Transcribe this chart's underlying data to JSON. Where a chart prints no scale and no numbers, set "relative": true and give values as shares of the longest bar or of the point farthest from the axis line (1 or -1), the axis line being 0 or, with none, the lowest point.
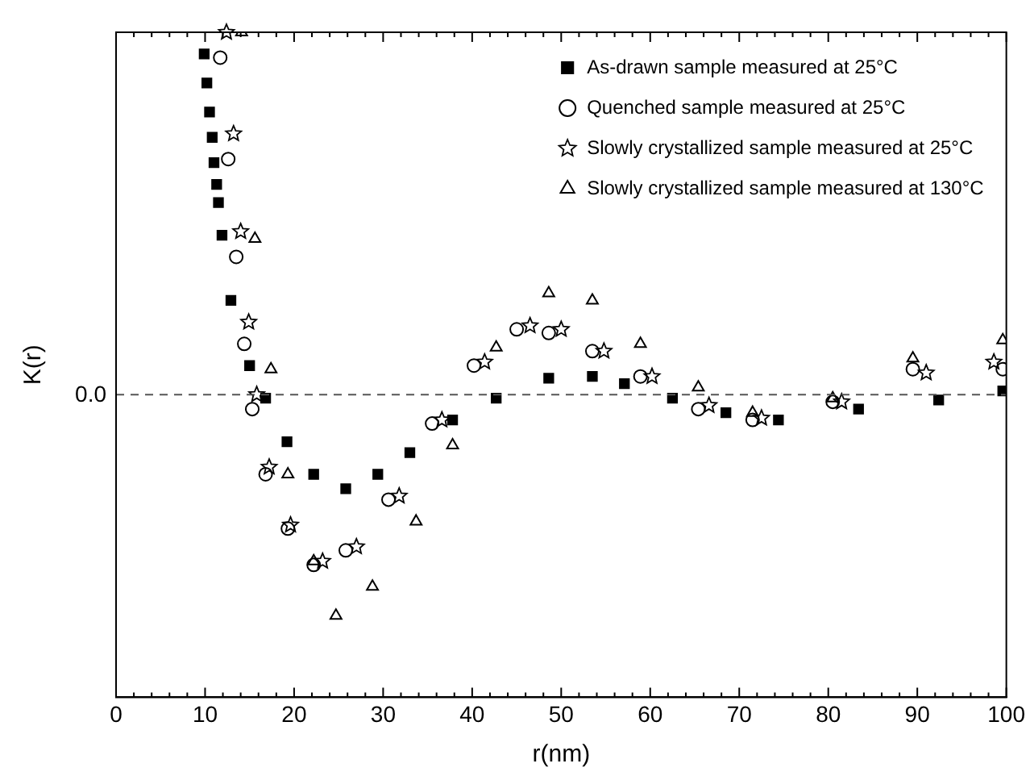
{
  "chart_data": {
    "type": "scatter",
    "xlabel": "r(nm)",
    "ylabel": "K(r)",
    "relative": true,
    "legend": "top right",
    "grid": false,
    "xlim": [
      0,
      100
    ],
    "xticks": [
      0,
      {
        "value": 2,
        "label": null
      },
      {
        "value": 4,
        "label": null
      },
      {
        "value": 6,
        "label": null
      },
      {
        "value": 8,
        "label": null
      },
      10,
      {
        "value": 12,
        "label": null
      },
      {
        "value": 14,
        "label": null
      },
      {
        "value": 16,
        "label": null
      },
      {
        "value": 18,
        "label": null
      },
      20,
      {
        "value": 22,
        "label": null
      },
      {
        "value": 24,
        "label": null
      },
      {
        "value": 26,
        "label": null
      },
      {
        "value": 28,
        "label": null
      },
      30,
      {
        "value": 32,
        "label": null
      },
      {
        "value": 34,
        "label": null
      },
      {
        "value": 36,
        "label": null
      },
      {
        "value": 38,
        "label": null
      },
      40,
      {
        "value": 42,
        "label": null
      },
      {
        "value": 44,
        "label": null
      },
      {
        "value": 46,
        "label": null
      },
      {
        "value": 48,
        "label": null
      },
      50,
      {
        "value": 52,
        "label": null
      },
      {
        "value": 54,
        "label": null
      },
      {
        "value": 56,
        "label": null
      },
      {
        "value": 58,
        "label": null
      },
      60,
      {
        "value": 62,
        "label": null
      },
      {
        "value": 64,
        "label": null
      },
      {
        "value": 66,
        "label": null
      },
      {
        "value": 68,
        "label": null
      },
      70,
      {
        "value": 72,
        "label": null
      },
      {
        "value": 74,
        "label": null
      },
      {
        "value": 76,
        "label": null
      },
      {
        "value": 78,
        "label": null
      },
      80,
      {
        "value": 82,
        "label": null
      },
      {
        "value": 84,
        "label": null
      },
      {
        "value": 86,
        "label": null
      },
      {
        "value": 88,
        "label": null
      },
      90,
      {
        "value": 92,
        "label": null
      },
      {
        "value": 94,
        "label": null
      },
      {
        "value": 96,
        "label": null
      },
      {
        "value": 98,
        "label": null
      },
      100
    ],
    "ref_lines": [
      {
        "axis": "y",
        "value": 0,
        "label": "0.0",
        "color": "#555555",
        "line_style": "dashed"
      }
    ],
    "series": [
      {
        "name": "As-drawn sample measured at 25°C",
        "color": "#000000",
        "marker": "square",
        "x": [
          9.9,
          10.2,
          10.5,
          10.8,
          11.0,
          11.3,
          11.5,
          11.9,
          12.9,
          15.0,
          16.8,
          19.2,
          22.2,
          25.8,
          29.4,
          33.0,
          37.8,
          42.7,
          48.6,
          53.5,
          57.1,
          62.5,
          68.5,
          74.4,
          83.4,
          92.4,
          99.6
        ],
        "values": [
          0.94,
          0.86,
          0.78,
          0.71,
          0.64,
          0.58,
          0.53,
          0.44,
          0.26,
          0.08,
          -0.01,
          -0.13,
          -0.22,
          -0.26,
          -0.22,
          -0.16,
          -0.07,
          -0.01,
          0.045,
          0.05,
          0.03,
          -0.01,
          -0.05,
          -0.07,
          -0.04,
          -0.015,
          0.01
        ]
      },
      {
        "name": "Quenched sample measured at 25°C",
        "color": "#000000",
        "marker": "circle",
        "x": [
          11.7,
          12.6,
          13.5,
          14.4,
          15.3,
          16.8,
          19.3,
          22.2,
          25.8,
          30.6,
          35.5,
          40.2,
          45.0,
          48.6,
          53.5,
          58.9,
          65.4,
          71.5,
          80.5,
          89.5,
          99.6
        ],
        "values": [
          0.93,
          0.65,
          0.38,
          0.14,
          -0.04,
          -0.22,
          -0.37,
          -0.47,
          -0.43,
          -0.29,
          -0.08,
          0.08,
          0.18,
          0.17,
          0.12,
          0.05,
          -0.04,
          -0.07,
          -0.02,
          0.07,
          0.07
        ]
      },
      {
        "name": "Slowly crystallized sample measured at 25°C",
        "color": "#000000",
        "marker": "star",
        "x": [
          12.4,
          13.2,
          14.0,
          14.9,
          15.8,
          17.2,
          19.6,
          23.2,
          27.0,
          31.8,
          36.6,
          41.4,
          46.5,
          50.0,
          54.8,
          60.2,
          66.6,
          72.5,
          81.5,
          91.0,
          98.6
        ],
        "values": [
          1.0,
          0.72,
          0.45,
          0.2,
          0.0,
          -0.2,
          -0.36,
          -0.46,
          -0.42,
          -0.28,
          -0.07,
          0.09,
          0.19,
          0.18,
          0.12,
          0.05,
          -0.03,
          -0.065,
          -0.02,
          0.06,
          0.09
        ]
      },
      {
        "name": "Slowly crystallized sample measured at 130°C",
        "color": "#000000",
        "marker": "triangle",
        "x": [
          14.1,
          15.6,
          17.4,
          19.3,
          22.2,
          24.7,
          28.8,
          33.7,
          37.8,
          42.7,
          48.6,
          53.5,
          58.9,
          65.4,
          71.5,
          80.5,
          89.5,
          99.6
        ],
        "values": [
          1.0,
          0.43,
          0.07,
          -0.22,
          -0.46,
          -0.61,
          -0.53,
          -0.35,
          -0.14,
          0.13,
          0.28,
          0.26,
          0.14,
          0.02,
          -0.05,
          -0.01,
          0.1,
          0.15
        ]
      }
    ]
  }
}
